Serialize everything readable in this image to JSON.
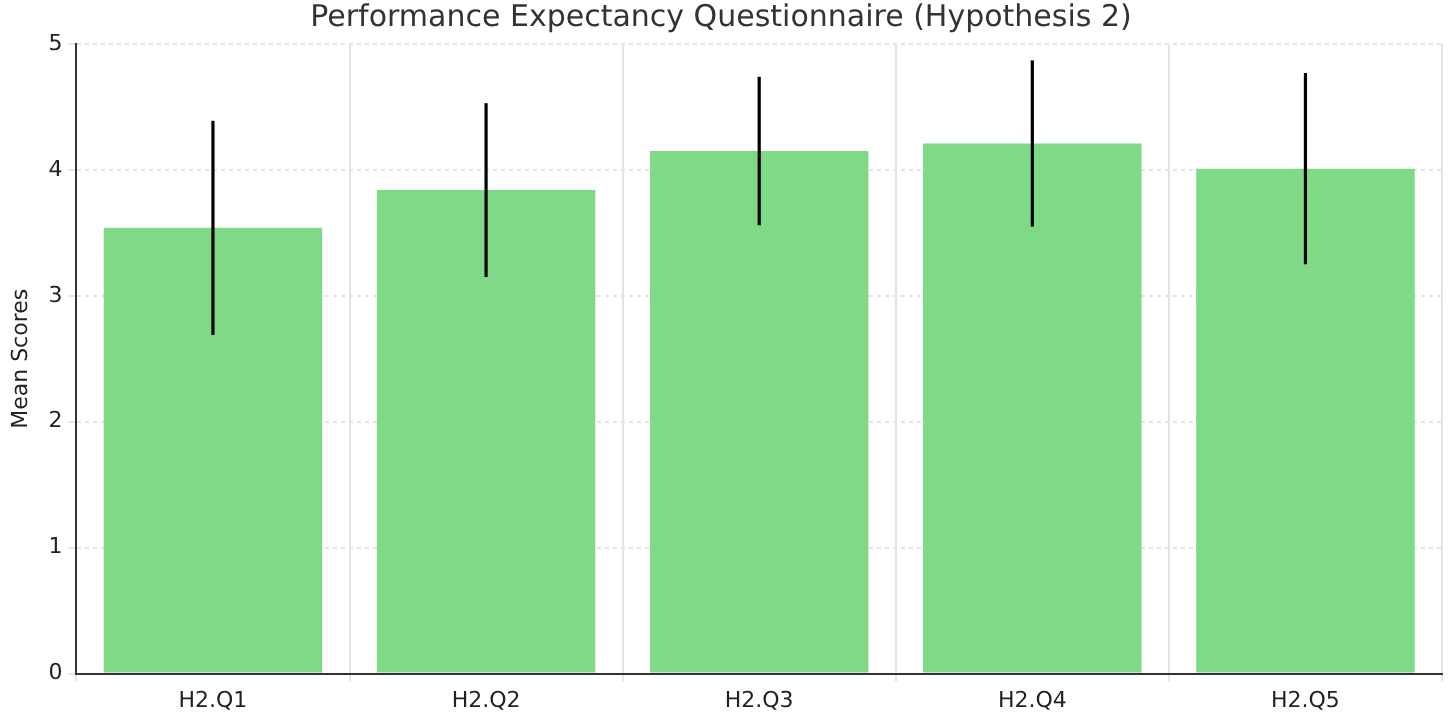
{
  "chart_data": {
    "type": "bar",
    "title": "Performance Expectancy Questionnaire (Hypothesis 2)",
    "ylabel": "Mean Scores",
    "categories": [
      "H2.Q1",
      "H2.Q2",
      "H2.Q3",
      "H2.Q4",
      "H2.Q5"
    ],
    "values": [
      3.54,
      3.84,
      4.15,
      4.21,
      4.01
    ],
    "errors": [
      0.85,
      0.69,
      0.59,
      0.66,
      0.76
    ],
    "color": "#80d987",
    "ylim": [
      0,
      5
    ],
    "yticks": [
      0,
      1,
      2,
      3,
      4,
      5
    ],
    "grid": true
  }
}
